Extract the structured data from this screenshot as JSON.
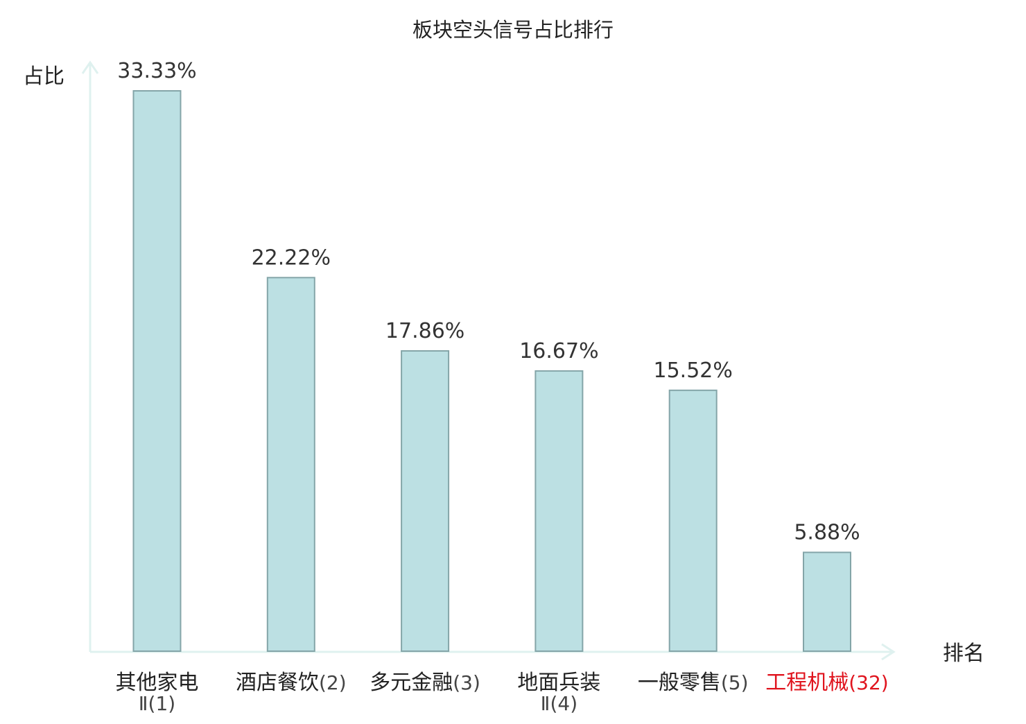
{
  "chart_data": {
    "type": "bar",
    "title": "板块空头信号占比排行",
    "ylabel": "占比",
    "xlabel": "排名",
    "categories": [
      {
        "name": "其他家电",
        "name_line2": "Ⅱ",
        "rank": "(1)",
        "highlight": false
      },
      {
        "name": "酒店餐饮",
        "name_line2": "",
        "rank": "(2)",
        "highlight": false
      },
      {
        "name": "多元金融",
        "name_line2": "",
        "rank": "(3)",
        "highlight": false
      },
      {
        "name": "地面兵装",
        "name_line2": "Ⅱ",
        "rank": "(4)",
        "highlight": false
      },
      {
        "name": "一般零售",
        "name_line2": "",
        "rank": "(5)",
        "highlight": false
      },
      {
        "name": "工程机械",
        "name_line2": "",
        "rank": "(32)",
        "highlight": true
      }
    ],
    "values": [
      33.33,
      22.22,
      17.86,
      16.67,
      15.52,
      5.88
    ],
    "value_labels": [
      "33.33%",
      "22.22%",
      "17.86%",
      "16.67%",
      "15.52%",
      "5.88%"
    ],
    "ylim": [
      0,
      33.33
    ],
    "grid": false,
    "legend": "none",
    "colors": {
      "bar_fill": "#bce0e3",
      "bar_stroke": "#84a5a8",
      "axis": "#dff1ef",
      "text": "#222222",
      "label_text": "#333333",
      "rank_text": "#444444",
      "highlight": "#e0141e"
    }
  }
}
